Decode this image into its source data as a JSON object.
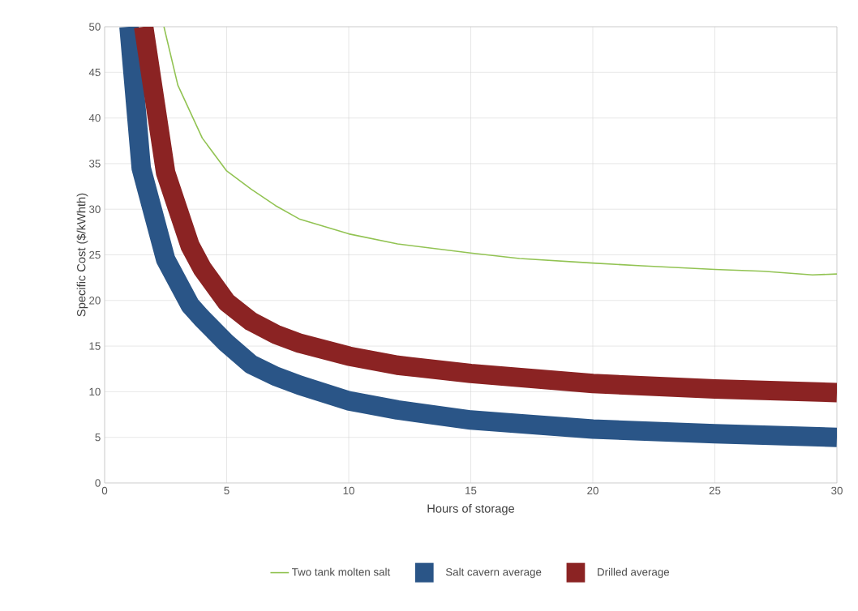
{
  "chart_data": {
    "type": "line",
    "xlabel": "Hours of storage",
    "ylabel": "Specific Cost ($/kWhth)",
    "xlim": [
      0,
      30
    ],
    "ylim": [
      0,
      50
    ],
    "xticks": [
      0,
      5,
      10,
      15,
      20,
      25,
      30
    ],
    "yticks": [
      0,
      5,
      10,
      15,
      20,
      25,
      30,
      35,
      40,
      45,
      50
    ],
    "grid": true,
    "legend": "bottom",
    "marker": "none",
    "line_style": "solid",
    "series": [
      {
        "name": "Two tank molten salt",
        "color": "#92c353",
        "x": [
          2.43,
          3,
          4,
          5,
          6,
          7,
          8,
          10,
          12,
          15,
          17,
          20,
          22,
          25,
          27,
          29,
          30
        ],
        "values": [
          50,
          43.6,
          37.8,
          34.2,
          32.2,
          30.4,
          28.9,
          27.3,
          26.2,
          25.2,
          24.6,
          24.1,
          23.8,
          23.4,
          23.2,
          22.8,
          22.9
        ]
      },
      {
        "name": "Salt cavern average",
        "color": "#2a5587",
        "x": [
          1,
          1.5,
          2.5,
          3.5,
          4,
          5,
          6,
          7,
          8,
          10,
          12,
          15,
          20,
          25,
          30
        ],
        "values": [
          50,
          34.5,
          24.5,
          19.5,
          18,
          15.3,
          13,
          11.7,
          10.7,
          9,
          8,
          6.9,
          5.9,
          5.4,
          5
        ]
      },
      {
        "name": "Drilled average",
        "color": "#8b2323",
        "x": [
          1.6,
          2.5,
          3.5,
          4,
          5,
          6,
          7,
          8,
          10,
          12,
          15,
          20,
          25,
          30
        ],
        "values": [
          50,
          34,
          26,
          23.5,
          19.8,
          17.7,
          16.3,
          15.3,
          13.9,
          12.9,
          12,
          10.9,
          10.3,
          9.9
        ]
      }
    ]
  }
}
